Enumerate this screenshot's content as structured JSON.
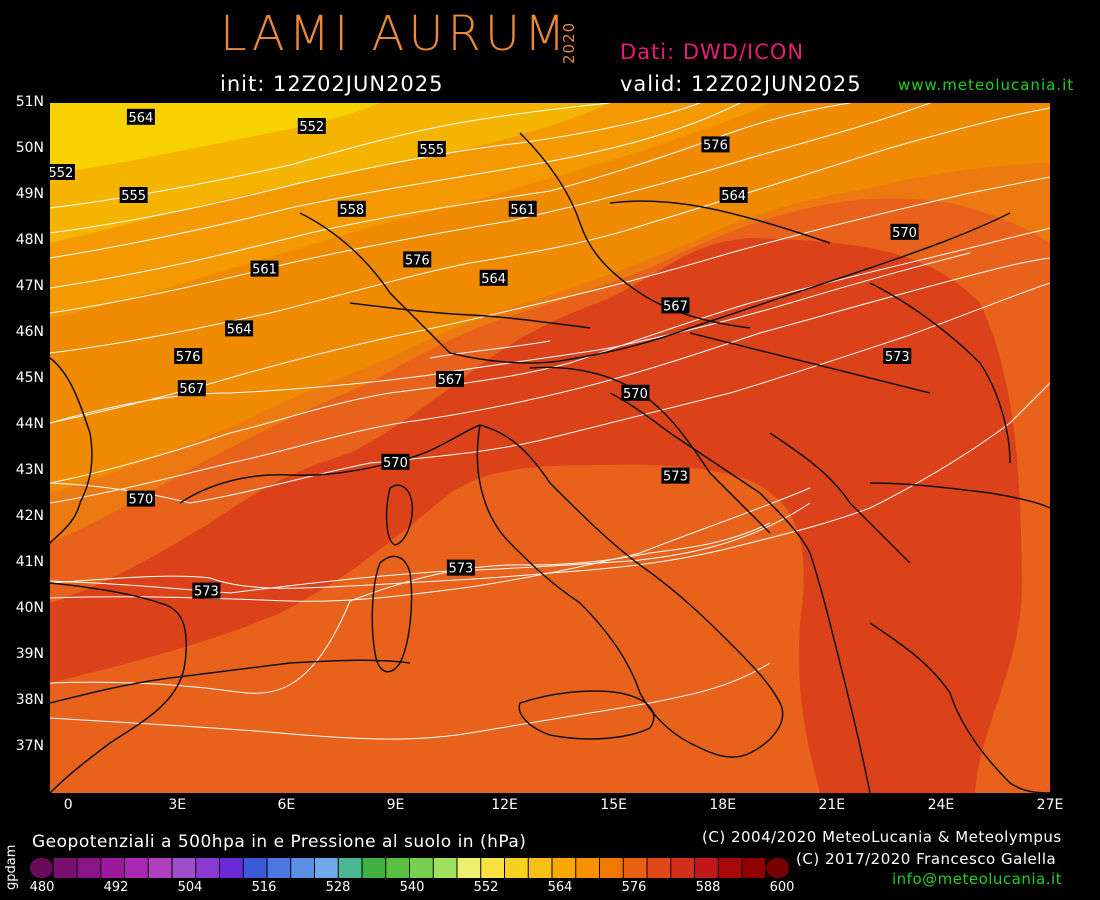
{
  "header": {
    "brand": "LAMI AURUM",
    "brand_year": "2020",
    "data_source": "Dati: DWD/ICON",
    "init": "init: 12Z02JUN2025",
    "valid": "valid: 12Z02JUN2025",
    "website": "www.meteolucania.it"
  },
  "map": {
    "lat_range": [
      36,
      51
    ],
    "lon_range": [
      -0.5,
      27
    ],
    "lat_labels": [
      "51N",
      "50N",
      "49N",
      "48N",
      "47N",
      "46N",
      "45N",
      "44N",
      "43N",
      "42N",
      "41N",
      "40N",
      "39N",
      "38N",
      "37N"
    ],
    "lon_labels": [
      "0",
      "3E",
      "6E",
      "9E",
      "12E",
      "15E",
      "18E",
      "21E",
      "24E",
      "27E"
    ],
    "fill_colors": {
      "552": "#f7d200",
      "555": "#f5b400",
      "561": "#f49a00",
      "564": "#f08a00",
      "567": "#ec7a10",
      "570": "#e8621c",
      "573": "#db421a"
    },
    "contour_labels": [
      {
        "text": "564",
        "lon": 2.0,
        "lat": 50.7
      },
      {
        "text": "552",
        "lon": 6.7,
        "lat": 50.5
      },
      {
        "text": "552",
        "lon": -0.2,
        "lat": 49.5
      },
      {
        "text": "555",
        "lon": 10.0,
        "lat": 50.0
      },
      {
        "text": "576",
        "lon": 17.8,
        "lat": 50.1
      },
      {
        "text": "555",
        "lon": 1.8,
        "lat": 49.0
      },
      {
        "text": "558",
        "lon": 7.8,
        "lat": 48.7
      },
      {
        "text": "561",
        "lon": 12.5,
        "lat": 48.7
      },
      {
        "text": "564",
        "lon": 18.3,
        "lat": 49.0
      },
      {
        "text": "570",
        "lon": 23.0,
        "lat": 48.2
      },
      {
        "text": "561",
        "lon": 5.4,
        "lat": 47.4
      },
      {
        "text": "576",
        "lon": 9.6,
        "lat": 47.6
      },
      {
        "text": "564",
        "lon": 11.7,
        "lat": 47.2
      },
      {
        "text": "567",
        "lon": 16.7,
        "lat": 46.6
      },
      {
        "text": "564",
        "lon": 4.7,
        "lat": 46.1
      },
      {
        "text": "576",
        "lon": 3.3,
        "lat": 45.5
      },
      {
        "text": "573",
        "lon": 22.8,
        "lat": 45.5
      },
      {
        "text": "567",
        "lon": 3.4,
        "lat": 44.8
      },
      {
        "text": "567",
        "lon": 10.5,
        "lat": 45.0
      },
      {
        "text": "570",
        "lon": 15.6,
        "lat": 44.7
      },
      {
        "text": "570",
        "lon": 9.0,
        "lat": 43.2
      },
      {
        "text": "573",
        "lon": 16.7,
        "lat": 42.9
      },
      {
        "text": "570",
        "lon": 2.0,
        "lat": 42.4
      },
      {
        "text": "573",
        "lon": 10.8,
        "lat": 40.9
      },
      {
        "text": "573",
        "lon": 3.8,
        "lat": 40.4
      }
    ]
  },
  "footer": {
    "title": "Geopotenziali a 500hpa in e Pressione al suolo in (hPa)",
    "unit": "gpdam",
    "copyright1": "(C) 2004/2020 MeteoLucania & Meteolympus",
    "copyright2": "(C) 2017/2020 Francesco Galella",
    "email": "info@meteolucania.it",
    "colorbar_labels": [
      "480",
      "492",
      "504",
      "516",
      "528",
      "540",
      "552",
      "564",
      "576",
      "588",
      "600"
    ],
    "colorbar_colors": [
      "#6a0a5a",
      "#7a0f70",
      "#8a1587",
      "#9b1a9e",
      "#a828b4",
      "#b040c0",
      "#9c4ec8",
      "#8a3ad0",
      "#6a2ad8",
      "#3a5ad8",
      "#4a78e0",
      "#5a90e8",
      "#70a8ec",
      "#4ab890",
      "#40b040",
      "#5ac040",
      "#78d050",
      "#a0e060",
      "#f0f070",
      "#f8e040",
      "#f8d020",
      "#f8c010",
      "#f8a800",
      "#f89000",
      "#f07800",
      "#e86010",
      "#e04818",
      "#d03018",
      "#c01818",
      "#a80808",
      "#900000",
      "#780000"
    ]
  }
}
